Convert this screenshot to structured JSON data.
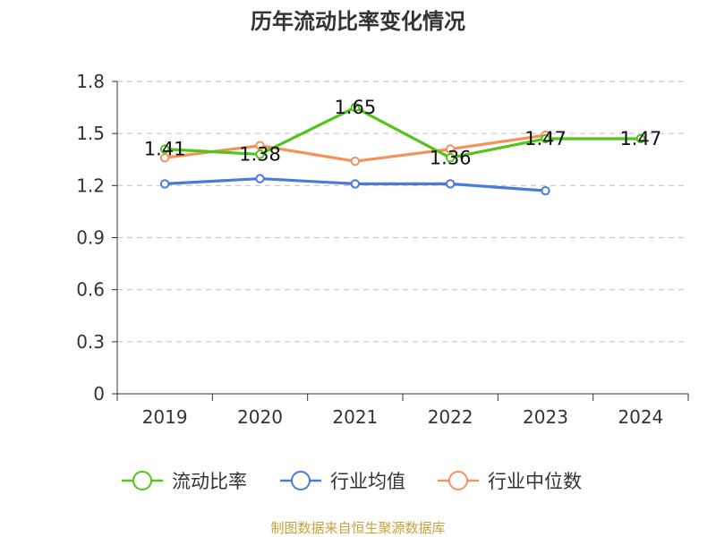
{
  "chart_data": {
    "type": "line",
    "title": "历年流动比率变化情况",
    "categories": [
      "2019",
      "2020",
      "2021",
      "2022",
      "2023",
      "2024"
    ],
    "ylim": [
      0,
      1.8
    ],
    "yticks": [
      "0",
      "0.3",
      "0.6",
      "0.9",
      "1.2",
      "1.5",
      "1.8"
    ],
    "grid": true,
    "legend_position": "bottom",
    "series": [
      {
        "name": "流动比率",
        "color": "#52c41a",
        "values": [
          1.41,
          1.38,
          1.65,
          1.36,
          1.47,
          1.47
        ],
        "labels": [
          "1.41",
          "1.38",
          "1.65",
          "1.36",
          "1.47",
          "1.47"
        ]
      },
      {
        "name": "行业均值",
        "color": "#4a7bd6",
        "values": [
          1.21,
          1.24,
          1.21,
          1.21,
          1.17,
          null
        ]
      },
      {
        "name": "行业中位数",
        "color": "#f5915a",
        "values": [
          1.36,
          1.43,
          1.34,
          1.41,
          1.49,
          null
        ]
      }
    ],
    "source": "制图数据来自恒生聚源数据库"
  }
}
